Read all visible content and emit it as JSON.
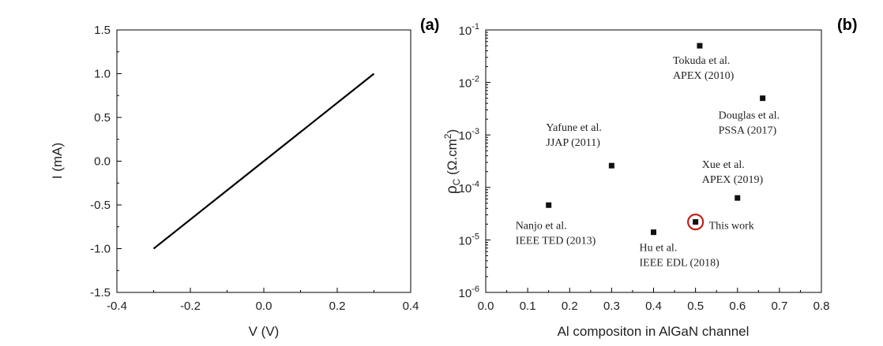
{
  "chart_data": [
    {
      "type": "line",
      "panel_label": "(a)",
      "xlabel": "V (V)",
      "ylabel": "I (mA)",
      "xlim": [
        -0.4,
        0.4
      ],
      "ylim": [
        -1.5,
        1.5
      ],
      "xticks": [
        "-0.4",
        "-0.2",
        "0.0",
        "0.2",
        "0.4"
      ],
      "yticks": [
        "-1.5",
        "-1.0",
        "-0.5",
        "0.0",
        "0.5",
        "1.0",
        "1.5"
      ],
      "series": [
        {
          "x": [
            -0.3,
            0.3
          ],
          "y": [
            -1.0,
            1.0
          ]
        }
      ]
    },
    {
      "type": "scatter",
      "panel_label": "(b)",
      "xlabel": "Al compositon in AlGaN channel",
      "ylabel": {
        "rho": "ρ",
        "sub": "C",
        "unit": " (Ω.cm",
        "sup": "2",
        "close": ")"
      },
      "xlim": [
        0.0,
        0.8
      ],
      "ylim_log10": [
        -6,
        -1
      ],
      "y_scale": "log",
      "xticks": [
        "0.0",
        "0.1",
        "0.2",
        "0.3",
        "0.4",
        "0.5",
        "0.6",
        "0.7",
        "0.8"
      ],
      "yticks": [
        {
          "base": "10",
          "exp": "-6"
        },
        {
          "base": "10",
          "exp": "-5"
        },
        {
          "base": "10",
          "exp": "-4"
        },
        {
          "base": "10",
          "exp": "-3"
        },
        {
          "base": "10",
          "exp": "-2"
        },
        {
          "base": "10",
          "exp": "-1"
        }
      ],
      "points": [
        {
          "x": 0.15,
          "y": 4.6e-05,
          "label": [
            "Nanjo et al.",
            "IEEE TED (2013)"
          ]
        },
        {
          "x": 0.3,
          "y": 0.00026,
          "label": [
            "Yafune et al.",
            "JJAP (2011)"
          ]
        },
        {
          "x": 0.4,
          "y": 1.4e-05,
          "label": [
            "Hu et al.",
            "IEEE EDL (2018)"
          ]
        },
        {
          "x": 0.5,
          "y": 2.2e-05,
          "label": [
            "This work"
          ],
          "highlight": true
        },
        {
          "x": 0.51,
          "y": 0.05,
          "label": [
            "Tokuda et al.",
            "APEX (2010)"
          ]
        },
        {
          "x": 0.6,
          "y": 6.3e-05,
          "label": [
            "Xue et al.",
            "APEX (2019)"
          ]
        },
        {
          "x": 0.66,
          "y": 0.005,
          "label": [
            "Douglas et al.",
            "PSSA (2017)"
          ]
        }
      ],
      "colors": {
        "marker": "#111111",
        "highlight_ring": "#c0201b"
      }
    }
  ]
}
